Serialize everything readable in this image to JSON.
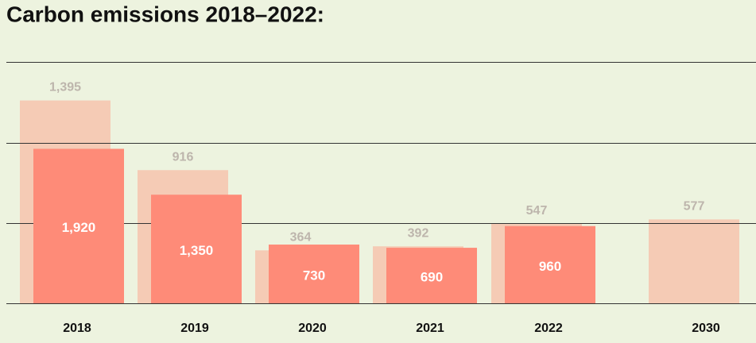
{
  "chart_data": {
    "type": "bar",
    "title": "Carbon emissions 2018–2022:",
    "categories": [
      "2018",
      "2019",
      "2020",
      "2021",
      "2022",
      "2030"
    ],
    "series": [
      {
        "color": "#f5cbb5",
        "values": [
          1395,
          916,
          364,
          392,
          547,
          577
        ],
        "value_labels": [
          "1,395",
          "916",
          "364",
          "392",
          "547",
          "577"
        ]
      },
      {
        "color": "#fe8b78",
        "axis": "y2",
        "values": [
          1920,
          1350,
          730,
          690,
          960,
          null
        ],
        "value_labels": [
          "1,920",
          "1,350",
          "730",
          "690",
          "960",
          null
        ]
      }
    ],
    "ylim": [
      0,
      1660
    ],
    "y2lim": [
      0,
      3000
    ]
  }
}
